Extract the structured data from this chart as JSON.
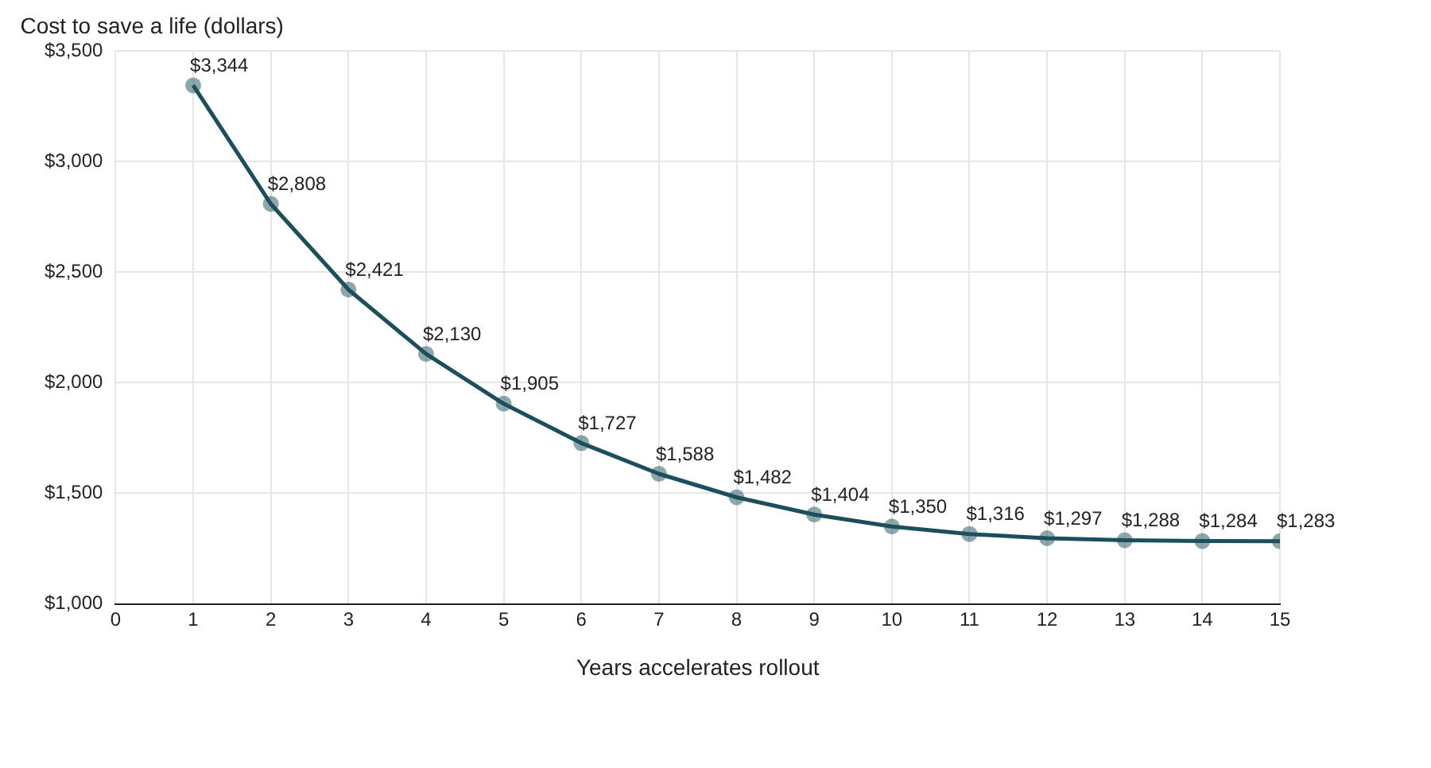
{
  "chart_data": {
    "type": "line",
    "ylabel": "Cost to save a life (dollars)",
    "xlabel": "Years accelerates rollout",
    "x": [
      1,
      2,
      3,
      4,
      5,
      6,
      7,
      8,
      9,
      10,
      11,
      12,
      13,
      14,
      15
    ],
    "series": [
      {
        "color": "#1b4f5c",
        "values": [
          3344,
          2808,
          2421,
          2130,
          1905,
          1727,
          1588,
          1482,
          1404,
          1350,
          1316,
          1297,
          1288,
          1284,
          1283
        ],
        "value_labels": [
          "$3,344",
          "$2,808",
          "$2,421",
          "$2,130",
          "$1,905",
          "$1,727",
          "$1,588",
          "$1,482",
          "$1,404",
          "$1,350",
          "$1,316",
          "$1,297",
          "$1,288",
          "$1,284",
          "$1,283"
        ]
      }
    ],
    "xlim": [
      0,
      15
    ],
    "xticks": [
      0,
      1,
      2,
      3,
      4,
      5,
      6,
      7,
      8,
      9,
      10,
      11,
      12,
      13,
      14,
      15
    ],
    "ylim": [
      1000,
      3500
    ],
    "yticks": [
      {
        "value": 1000,
        "label": "$1,000"
      },
      {
        "value": 1500,
        "label": "$1,500"
      },
      {
        "value": 2000,
        "label": "$2,000"
      },
      {
        "value": 2500,
        "label": "$2,500"
      },
      {
        "value": 3000,
        "label": "$3,000"
      },
      {
        "value": 3500,
        "label": "$3,500"
      }
    ],
    "grid": true,
    "legend": false,
    "marker": "circle",
    "line_style": "solid"
  }
}
